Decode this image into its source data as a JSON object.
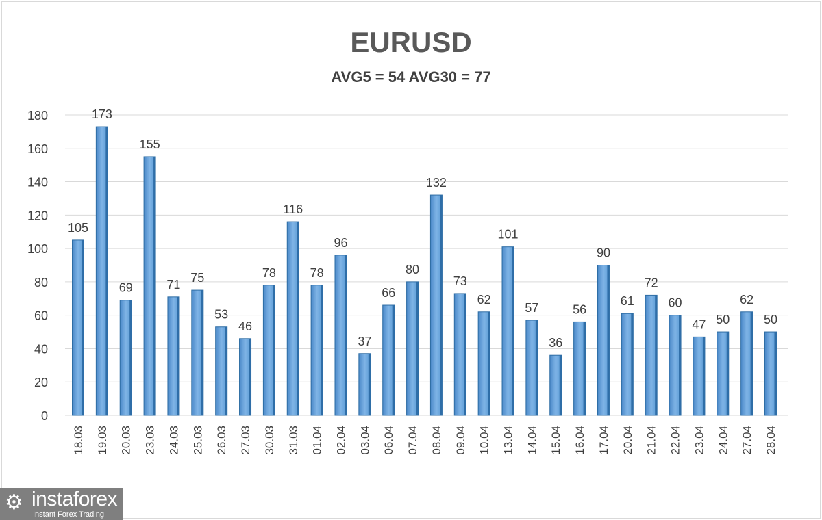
{
  "chart_data": {
    "type": "bar",
    "title": "EURUSD",
    "subtitle": "AVG5 = 54 AVG30 = 77",
    "categories": [
      "18.03",
      "19.03",
      "20.03",
      "23.03",
      "24.03",
      "25.03",
      "26.03",
      "27.03",
      "30.03",
      "31.03",
      "01.04",
      "02.04",
      "03.04",
      "06.04",
      "07.04",
      "08.04",
      "09.04",
      "10.04",
      "13.04",
      "14.04",
      "15.04",
      "16.04",
      "17.04",
      "20.04",
      "21.04",
      "22.04",
      "23.04",
      "24.04",
      "27.04",
      "28.04"
    ],
    "values": [
      105,
      173,
      69,
      155,
      71,
      75,
      53,
      46,
      78,
      116,
      78,
      96,
      37,
      66,
      80,
      132,
      73,
      62,
      101,
      57,
      36,
      56,
      90,
      61,
      72,
      60,
      47,
      50,
      62,
      50
    ],
    "ylim": [
      0,
      180
    ],
    "yticks": [
      0,
      20,
      40,
      60,
      80,
      100,
      120,
      140,
      160,
      180
    ],
    "xlabel": "",
    "ylabel": "",
    "grid": true,
    "legend": "none",
    "bar_color": "#5b9bd5",
    "data_labels": true
  },
  "watermark": {
    "brand": "instaforex",
    "tagline": "Instant Forex Trading"
  }
}
